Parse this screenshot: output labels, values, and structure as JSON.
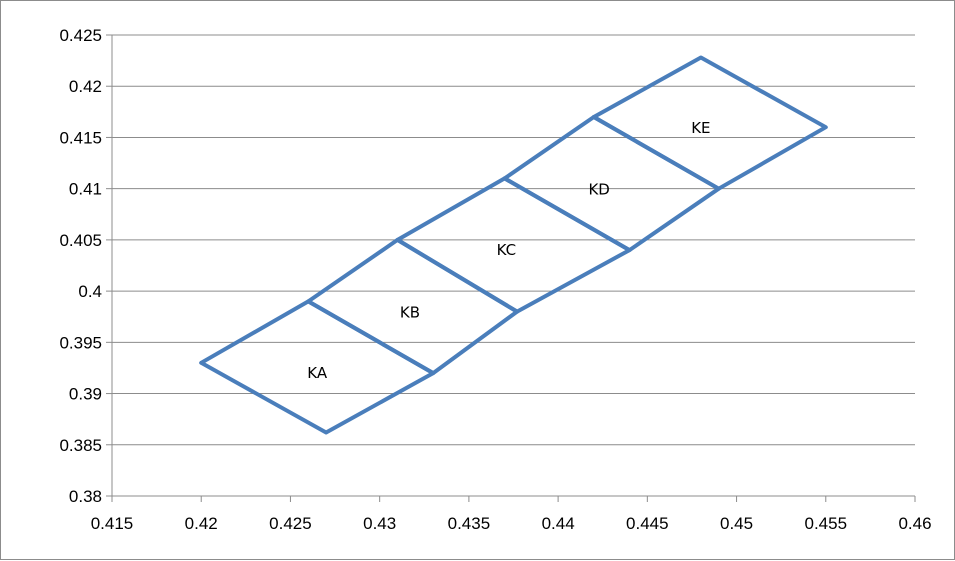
{
  "chart_data": {
    "type": "scatter",
    "title": "",
    "xlabel": "",
    "ylabel": "",
    "xlim": [
      0.415,
      0.46
    ],
    "ylim": [
      0.38,
      0.425
    ],
    "x_ticks": [
      "0.415",
      "0.42",
      "0.425",
      "0.43",
      "0.435",
      "0.44",
      "0.445",
      "0.45",
      "0.455",
      "0.46"
    ],
    "y_ticks": [
      "0.425",
      "0.42",
      "0.415",
      "0.41",
      "0.405",
      "0.4",
      "0.395",
      "0.39",
      "0.385",
      "0.38"
    ],
    "grid": "horizontal",
    "line_color": "#4a7ebb",
    "series": [
      {
        "points": [
          [
            0.42,
            0.393
          ],
          [
            0.427,
            0.3862
          ],
          [
            0.433,
            0.392
          ],
          [
            0.426,
            0.399
          ],
          [
            0.42,
            0.393
          ]
        ]
      },
      {
        "points": [
          [
            0.426,
            0.399
          ],
          [
            0.433,
            0.392
          ],
          [
            0.4377,
            0.398
          ],
          [
            0.431,
            0.405
          ],
          [
            0.426,
            0.399
          ]
        ]
      },
      {
        "points": [
          [
            0.431,
            0.405
          ],
          [
            0.4377,
            0.398
          ],
          [
            0.444,
            0.404
          ],
          [
            0.437,
            0.411
          ],
          [
            0.431,
            0.405
          ]
        ]
      },
      {
        "points": [
          [
            0.437,
            0.411
          ],
          [
            0.444,
            0.404
          ],
          [
            0.449,
            0.41
          ],
          [
            0.442,
            0.417
          ],
          [
            0.437,
            0.411
          ]
        ]
      },
      {
        "points": [
          [
            0.442,
            0.417
          ],
          [
            0.449,
            0.41
          ],
          [
            0.455,
            0.416
          ],
          [
            0.448,
            0.4228
          ],
          [
            0.442,
            0.417
          ]
        ]
      }
    ],
    "annotations": [
      {
        "text": "KA",
        "x": 0.4265,
        "y": 0.392
      },
      {
        "text": "KB",
        "x": 0.4317,
        "y": 0.3979
      },
      {
        "text": "KC",
        "x": 0.4371,
        "y": 0.404
      },
      {
        "text": "KD",
        "x": 0.4423,
        "y": 0.4099
      },
      {
        "text": "KE",
        "x": 0.448,
        "y": 0.4159
      }
    ]
  }
}
